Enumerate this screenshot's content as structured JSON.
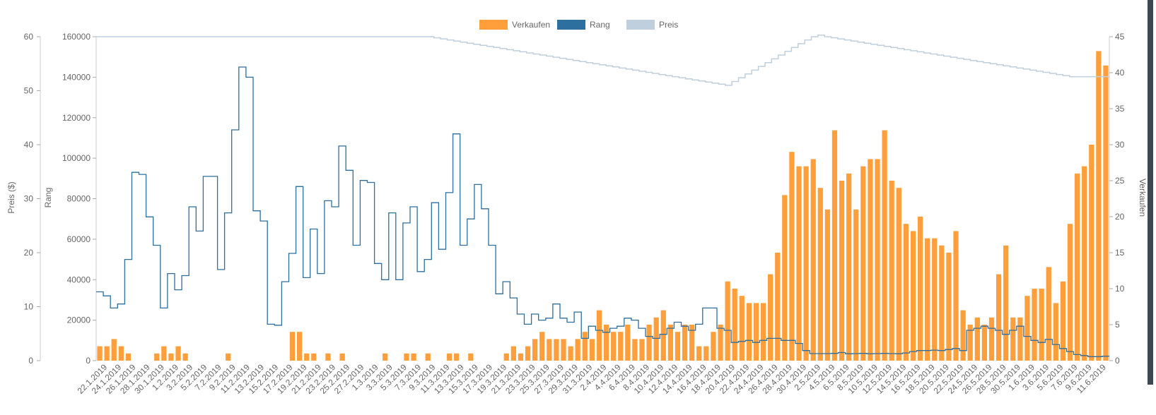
{
  "chart_data": {
    "type": "bar+line",
    "legend": [
      {
        "name": "Verkaufen",
        "color": "#ff9f3b"
      },
      {
        "name": "Rang",
        "color": "#2d6f9e"
      },
      {
        "name": "Preis",
        "color": "#bfcfdd"
      }
    ],
    "axes": {
      "preis": {
        "title": "Preis ($)",
        "min": 0,
        "max": 60,
        "ticks": [
          0,
          10,
          20,
          30,
          40,
          50,
          60
        ]
      },
      "rang": {
        "title": "Rang",
        "min": 0,
        "max": 160000,
        "ticks": [
          0,
          20000,
          40000,
          60000,
          80000,
          100000,
          120000,
          140000,
          160000
        ]
      },
      "verkaufen": {
        "title": "Verkaufen",
        "min": 0,
        "max": 45,
        "ticks": [
          0,
          5,
          10,
          15,
          20,
          25,
          30,
          35,
          40,
          45
        ]
      }
    },
    "x_labels": [
      "22.1.2019",
      "24.1.2019",
      "26.1.2019",
      "28.1.2019",
      "30.1.2019",
      "1.2.2019",
      "3.2.2019",
      "5.2.2019",
      "7.2.2019",
      "9.2.2019",
      "11.2.2019",
      "13.2.2019",
      "15.2.2019",
      "17.2.2019",
      "19.2.2019",
      "21.2.2019",
      "23.2.2019",
      "25.2.2019",
      "27.2.2019",
      "1.3.2019",
      "3.3.2019",
      "5.3.2019",
      "7.3.2019",
      "9.3.2019",
      "11.3.2019",
      "13.3.2019",
      "15.3.2019",
      "17.3.2019",
      "19.3.2019",
      "21.3.2019",
      "23.3.2019",
      "25.3.2019",
      "27.3.2019",
      "29.3.2019",
      "31.3.2019",
      "2.4.2019",
      "4.4.2019",
      "6.4.2019",
      "8.4.2019",
      "10.4.2019",
      "12.4.2019",
      "14.4.2019",
      "16.4.2019",
      "18.4.2019",
      "20.4.2019",
      "22.4.2019",
      "24.4.2019",
      "26.4.2019",
      "28.4.2019",
      "30.4.2019",
      "2.5.2019",
      "4.5.2019",
      "6.5.2019",
      "8.5.2019",
      "10.5.2019",
      "12.5.2019",
      "14.5.2019",
      "16.5.2019",
      "18.5.2019",
      "20.5.2019",
      "22.5.2019",
      "24.5.2019",
      "26.5.2019",
      "28.5.2019",
      "30.5.2019",
      "1.6.2019",
      "3.6.2019",
      "5.6.2019",
      "7.6.2019",
      "9.6.2019",
      "11.6.2019"
    ],
    "series": [
      {
        "name": "Verkaufen",
        "axis": "verkaufen",
        "type": "bar",
        "values": [
          2,
          2,
          3,
          2,
          1,
          0,
          0,
          0,
          1,
          2,
          1,
          2,
          1,
          0,
          0,
          0,
          0,
          0,
          1,
          0,
          0,
          0,
          0,
          0,
          0,
          0,
          0,
          4,
          4,
          1,
          1,
          0,
          1,
          0,
          1,
          0,
          0,
          0,
          0,
          0,
          1,
          0,
          0,
          1,
          1,
          0,
          1,
          0,
          0,
          1,
          1,
          0,
          1,
          0,
          0,
          0,
          0,
          1,
          2,
          1,
          2,
          3,
          4,
          3,
          3,
          3,
          2,
          3,
          4,
          3,
          7,
          5,
          4,
          4,
          5,
          3,
          3,
          5,
          6,
          7,
          5,
          4,
          5,
          5,
          2,
          2,
          4,
          5,
          11,
          10,
          9,
          8,
          8,
          8,
          12,
          15,
          23,
          29,
          27,
          27,
          28,
          24,
          21,
          32,
          25,
          26,
          21,
          27,
          28,
          28,
          32,
          25,
          24,
          19,
          18,
          20,
          17,
          17,
          16,
          15,
          18,
          7,
          5,
          6,
          5,
          6,
          12,
          16,
          6,
          6,
          9,
          10,
          10,
          13,
          8,
          11,
          19,
          26,
          27,
          30,
          43,
          41
        ]
      },
      {
        "name": "Rang",
        "axis": "rang",
        "type": "step-line",
        "values": [
          34000,
          32000,
          26000,
          28000,
          50000,
          93000,
          92000,
          71000,
          57000,
          26000,
          43000,
          35000,
          42000,
          76000,
          64000,
          91000,
          91000,
          45000,
          73000,
          114000,
          145000,
          140000,
          74000,
          69000,
          18000,
          17500,
          39000,
          53000,
          86000,
          41000,
          65000,
          43000,
          79000,
          76000,
          106000,
          94000,
          57000,
          89000,
          88000,
          48000,
          40000,
          73000,
          40000,
          68000,
          76000,
          44000,
          50000,
          78000,
          55000,
          83000,
          112000,
          57000,
          70000,
          87000,
          75000,
          57000,
          33000,
          39000,
          31000,
          23000,
          18000,
          23000,
          20000,
          21000,
          28000,
          21000,
          19000,
          24000,
          11000,
          17000,
          15000,
          14000,
          16000,
          17000,
          21000,
          20000,
          16000,
          12000,
          11000,
          13000,
          16000,
          19000,
          17000,
          15000,
          18000,
          26000,
          26000,
          16000,
          15000,
          9000,
          9500,
          10000,
          9000,
          10000,
          11000,
          11000,
          10000,
          10000,
          8500,
          5000,
          3500,
          3500,
          3500,
          3600,
          4000,
          3400,
          3500,
          3600,
          3400,
          3500,
          3600,
          3500,
          3400,
          3800,
          4500,
          5000,
          5000,
          5200,
          5000,
          5500,
          6000,
          5000,
          15000,
          16000,
          17000,
          16000,
          15000,
          13000,
          15000,
          17000,
          12000,
          10000,
          9000,
          10500,
          8000,
          6000,
          4500,
          3000,
          2500,
          2000,
          2000,
          2200
        ]
      },
      {
        "name": "Preis",
        "axis": "preis",
        "type": "step-line",
        "values": [
          60,
          60,
          60,
          60,
          60,
          60,
          60,
          60,
          60,
          60,
          60,
          60,
          60,
          60,
          60,
          60,
          60,
          60,
          60,
          60,
          60,
          60,
          60,
          60,
          60,
          60,
          60,
          60,
          60,
          60,
          60,
          60,
          60,
          60,
          60,
          60,
          60,
          60,
          60,
          60,
          60,
          60,
          60,
          60,
          60,
          60,
          60,
          60,
          60,
          60,
          60,
          59.8,
          59.6,
          59.4,
          59.2,
          59.0,
          58.8,
          58.6,
          58.4,
          58.2,
          58.0,
          57.8,
          57.6,
          57.4,
          57.2,
          57.0,
          56.8,
          56.6,
          56.4,
          56.2,
          56.0,
          55.8,
          55.6,
          55.4,
          55.2,
          55.0,
          54.8,
          54.6,
          54.4,
          54.2,
          54.0,
          53.8,
          53.6,
          53.4,
          53.2,
          53.0,
          52.8,
          52.6,
          52.4,
          52.2,
          52.0,
          51.8,
          51.6,
          51.4,
          51.2,
          51.0,
          51.7,
          52.4,
          53.1,
          53.8,
          54.5,
          55.2,
          55.9,
          56.6,
          57.3,
          58.0,
          58.7,
          59.4,
          60.0,
          60.3,
          60.0,
          59.8,
          59.6,
          59.4,
          59.2,
          59.0,
          58.8,
          58.6,
          58.4,
          58.2,
          58.0,
          57.8,
          57.6,
          57.4,
          57.2,
          57.0,
          56.8,
          56.6,
          56.4,
          56.2,
          56.0,
          55.8,
          55.6,
          55.4,
          55.2,
          55.0,
          54.8,
          54.6,
          54.4,
          54.2,
          54.0,
          53.8,
          53.6,
          53.4,
          53.2,
          53.0,
          52.8,
          52.6,
          52.6,
          52.6,
          52.6,
          52.6,
          52.6
        ]
      }
    ]
  }
}
